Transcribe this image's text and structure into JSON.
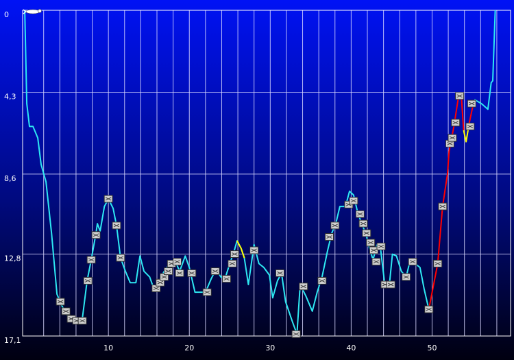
{
  "chart_data": {
    "type": "line",
    "xlim": [
      -0.6,
      59.7
    ],
    "ylim": [
      17.1,
      0
    ],
    "xticks": [
      10,
      20,
      30,
      40,
      50
    ],
    "xgrid": [
      2,
      4,
      6,
      8,
      10,
      12,
      14,
      16,
      18,
      20,
      22,
      24,
      26,
      28,
      30,
      32,
      34,
      36,
      38,
      40,
      42,
      44,
      46,
      48,
      50,
      52,
      54,
      56,
      58
    ],
    "yticks": [
      0,
      {
        "value": 4.3,
        "label": "4,3"
      },
      {
        "value": 8.6,
        "label": "8,6"
      },
      {
        "value": 12.8,
        "label": "12,8"
      },
      {
        "value": 17.1,
        "label": "17,1"
      }
    ],
    "grid": true,
    "series": [
      {
        "color": "#2ee8f2",
        "x": [
          -0.34,
          -0.25,
          -0.08,
          0.25,
          0.68,
          1.27,
          1.69,
          2.29,
          2.97,
          3.64,
          4.24,
          4.92,
          5.47,
          6.36,
          6.78,
          7.37,
          7.88,
          8.47,
          8.64,
          8.98,
          9.5,
          10.0,
          10.59,
          11.0,
          11.5,
          12.1,
          12.7,
          13.4,
          13.9,
          14.4,
          15.1,
          15.6,
          16.3,
          16.9,
          17.6,
          18.3,
          18.8,
          19.5,
          20.0,
          20.7,
          21.4,
          22.0,
          22.7,
          23.3,
          23.9,
          24.4,
          25.0,
          25.5,
          25.9,
          26.4,
          26.8,
          27.3,
          28.0,
          28.6,
          29.2,
          29.9,
          30.3,
          30.9,
          31.4,
          31.9,
          32.7,
          33.3,
          33.7,
          34.4,
          35.2,
          35.8,
          36.4,
          37.1,
          37.6,
          38.1,
          38.6,
          39.3,
          39.8,
          40.3,
          40.8,
          41.3,
          41.8,
          42.2,
          42.7,
          43.2,
          43.6,
          44.1,
          44.7,
          45.1,
          45.6,
          46.2,
          46.8,
          47.3,
          47.9,
          48.5,
          49.0,
          49.6,
          52.0,
          55.1,
          55.3,
          56.1,
          56.9,
          57.3,
          57.5,
          57.8
        ],
        "values": [
          0,
          1.6,
          4.9,
          6.1,
          6.1,
          6.7,
          8.1,
          9.0,
          11.7,
          14.9,
          15.5,
          16.0,
          16.2,
          16.2,
          16.2,
          14.2,
          13.1,
          11.7,
          11.2,
          11.6,
          10.3,
          9.9,
          10.4,
          11.3,
          13.0,
          13.7,
          14.3,
          14.3,
          12.9,
          13.7,
          14.0,
          14.6,
          14.2,
          13.7,
          13.3,
          13.2,
          13.7,
          12.9,
          13.5,
          14.8,
          14.8,
          14.8,
          14.1,
          13.6,
          14.0,
          14.1,
          13.3,
          12.7,
          12.1,
          12.5,
          13.0,
          14.4,
          12.3,
          13.3,
          13.5,
          13.9,
          15.1,
          14.2,
          13.8,
          15.3,
          16.3,
          17.0,
          14.4,
          15.0,
          15.8,
          14.8,
          14.0,
          12.6,
          11.7,
          11.2,
          10.3,
          10.3,
          9.5,
          9.7,
          10.6,
          11.2,
          11.7,
          12.4,
          13.1,
          12.3,
          12.4,
          14.2,
          14.5,
          12.8,
          12.9,
          13.7,
          14.0,
          13.1,
          13.3,
          13.5,
          14.6,
          15.7,
          null,
          4.9,
          4.7,
          4.9,
          5.2,
          3.8,
          3.7,
          0
        ]
      },
      {
        "color": "#ff0000",
        "x": [
          49.6,
          50.7,
          51.3,
          51.9,
          52.1,
          52.7,
          53.2,
          53.6,
          53.9,
          54.2,
          54.6,
          55.1
        ],
        "values": [
          15.7,
          13.3,
          10.3,
          8.6,
          7.4,
          6.1,
          4.7,
          4.4,
          6.3,
          null,
          5.9,
          4.9
        ]
      },
      {
        "color": "#ffff00",
        "x": [
          25.9,
          26.4,
          26.8,
          27.0,
          53.9,
          54.2,
          54.6
        ],
        "values": [
          12.1,
          12.5,
          13.0,
          null,
          6.3,
          6.9,
          5.9
        ]
      }
    ],
    "markers": {
      "x": [
        4.07,
        4.75,
        5.42,
        6.1,
        6.78,
        7.46,
        7.88,
        8.47,
        10.0,
        11.0,
        11.5,
        15.9,
        16.4,
        16.9,
        17.4,
        17.8,
        18.5,
        18.8,
        20.3,
        22.2,
        23.2,
        24.6,
        25.3,
        25.6,
        28.0,
        31.2,
        33.2,
        34.1,
        36.4,
        37.3,
        38.0,
        39.7,
        40.3,
        41.1,
        41.5,
        41.9,
        42.4,
        42.8,
        43.1,
        43.7,
        44.2,
        44.9,
        46.8,
        47.6,
        49.6,
        50.7,
        51.3,
        52.2,
        52.5,
        52.9,
        53.4,
        54.7,
        54.9
      ],
      "y": [
        15.3,
        15.8,
        16.2,
        16.3,
        16.3,
        14.2,
        13.1,
        11.8,
        9.9,
        11.3,
        13.0,
        14.6,
        14.3,
        14.0,
        13.7,
        13.3,
        13.2,
        13.8,
        13.8,
        14.8,
        13.7,
        14.1,
        13.3,
        12.8,
        12.6,
        13.8,
        17.0,
        14.5,
        14.2,
        11.9,
        11.3,
        10.2,
        10.0,
        10.7,
        11.2,
        11.7,
        12.2,
        12.6,
        13.2,
        12.4,
        14.4,
        14.4,
        14.0,
        13.2,
        15.7,
        13.3,
        10.3,
        7.0,
        6.7,
        5.9,
        4.5,
        6.1,
        4.9
      ]
    }
  }
}
